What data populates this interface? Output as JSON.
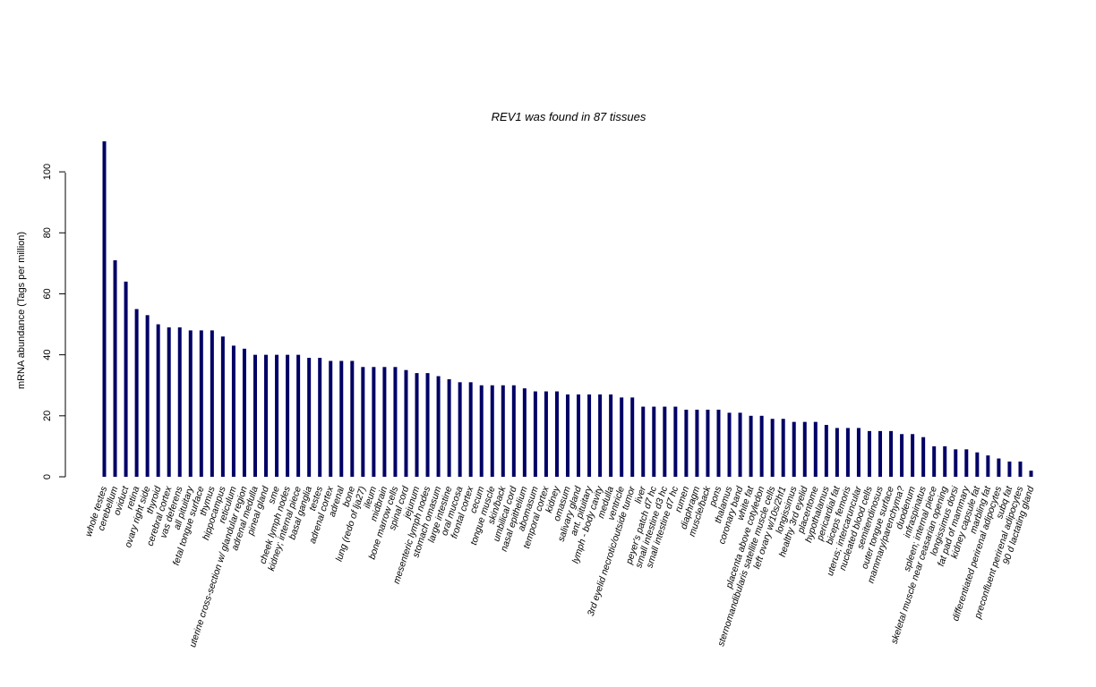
{
  "chart_data": {
    "type": "bar",
    "title": "REV1  was found in  87  tissues",
    "ylabel": "mRNA abundance (Tags per million)",
    "xlabel": "",
    "ylim": [
      0,
      110
    ],
    "yticks": [
      "0",
      "20",
      "40",
      "60",
      "80",
      "100"
    ],
    "bar_color": "#000066",
    "categories": [
      "whole testes",
      "cerebellum",
      "oviduct",
      "retina",
      "ovary right side",
      "thyroid",
      "cerebral cortex",
      "vas deferens",
      "all pituitary",
      "fetal tongue surface",
      "thymus",
      "hippocampus",
      "reticulum",
      "uterine cross-section w/ glandular region",
      "adrenal medulla",
      "pineal gland",
      "sme",
      "cheek lymph nodes",
      "kidney; internal piece",
      "basal ganglia",
      "testes",
      "adrenal cortex",
      "adrenal",
      "bone",
      "lung (redo of lja27)",
      "ileum",
      "midbrain",
      "bone marrow cells",
      "spinal cord",
      "jejunum",
      "mesenteric lymph nodes",
      "stomach omasum",
      "large intestine",
      "oral mucosa",
      "frontal cortex",
      "cecum",
      "tongue muscle",
      "skin/back",
      "umbilical cord",
      "nasal epithelium",
      "abomasum",
      "temporal cortex",
      "kidney",
      "omasum",
      "salivary gland",
      "ant. pituitary",
      "lymph - body cavity",
      "medulla",
      "ventricle",
      "3rd eyelid necrotic/outside tumor",
      "liver",
      "peyer's patch d7 hc",
      "small intestine d3 hc",
      "small intestine d7 hc",
      "rumen",
      "diaphragm",
      "muscle/back",
      "pons",
      "thalamus",
      "coronary band",
      "white fat",
      "placenta above cotyledon",
      "sternomandibularis satellite muscle cells",
      "left ovary w/10s/2hf1",
      "longissimus",
      "healthy 3rd eyelid",
      "placentome",
      "hypothalamus",
      "pericardial fat",
      "biceps femoris",
      "uterus; intercaruncular",
      "nucleated blood cells",
      "semitendinosus",
      "outer tongue surface",
      "mammary/parenchyma?",
      "duodenum",
      "infraspinatus",
      "spleen; internal piece",
      "skeletal muscle near ceasarian opening",
      "longissimus dorsi",
      "fat pad of mammary",
      "kidney capsule fat",
      "marbling fat",
      "differentiated perirenal adipocytes",
      "subq fat",
      "preconfluent perirenal adipocytes",
      "90 d lactating gland"
    ],
    "values": [
      110,
      71,
      64,
      55,
      53,
      50,
      49,
      49,
      48,
      48,
      48,
      46,
      43,
      42,
      40,
      40,
      40,
      40,
      40,
      39,
      39,
      38,
      38,
      38,
      36,
      36,
      36,
      36,
      35,
      34,
      34,
      33,
      32,
      31,
      31,
      30,
      30,
      30,
      30,
      29,
      28,
      28,
      28,
      27,
      27,
      27,
      27,
      27,
      26,
      26,
      23,
      23,
      23,
      23,
      22,
      22,
      22,
      22,
      21,
      21,
      20,
      20,
      19,
      19,
      18,
      18,
      18,
      17,
      16,
      16,
      16,
      15,
      15,
      15,
      14,
      14,
      13,
      10,
      10,
      9,
      9,
      8,
      7,
      6,
      5,
      5,
      2
    ]
  }
}
